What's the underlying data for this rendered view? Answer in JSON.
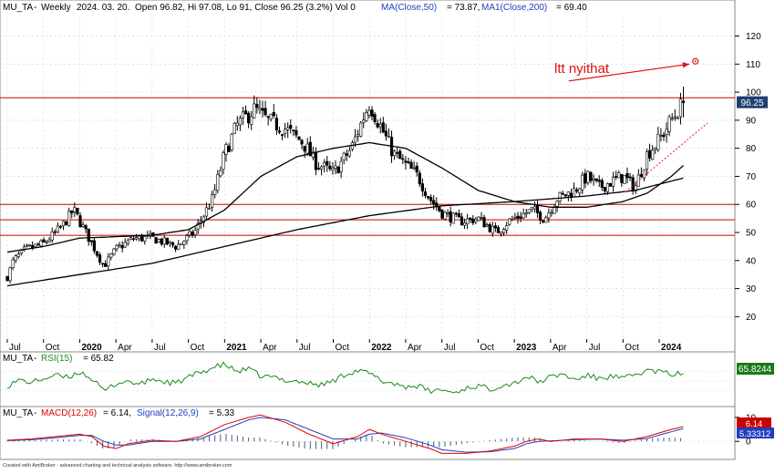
{
  "colors": {
    "candle": "#000000",
    "ma": "#000000",
    "hline": "#cc0000",
    "annotation": "#dd1111",
    "trend": "#ee2222",
    "rsi": "#1a8a1a",
    "macd": "#dd0000",
    "signal": "#1f3fbf",
    "hist": "#4a5a7a",
    "grid": "#c8d0dc",
    "last_price_box": "#1f3f6f",
    "rsi_box": "#1a7a1a",
    "macd_box": "#cc0000",
    "signal_box": "#1f3fbf"
  },
  "header": {
    "symbol": "MU_TA",
    "period": "Weekly",
    "date": "2024. 03. 20.",
    "ohlc_text": "Open 96.82, Hi 97.08, Lo 91, Close 96.25 (3.2%) Vol 0",
    "ma50_label": "MA(Close,50)",
    "ma50_value": "= 73.87,",
    "ma200_label": "MA1(Close,200)",
    "ma200_value": "= 69.40"
  },
  "rsi_panel": {
    "symbol": "MU_TA",
    "label": "RSI(15)",
    "value_text": "= 65.82",
    "last_box": "65.8244"
  },
  "macd_panel": {
    "symbol": "MU_TA",
    "label_macd": "MACD(12,26)",
    "value_macd": "= 6.14,",
    "label_signal": "Signal(12,26,9)",
    "value_signal": "= 5.33",
    "last_macd_box": "6.14",
    "last_signal_box": "5.33312"
  },
  "footer": "Created with AmiBroker - advanced charting and technical analysis software. http://www.amibroker.com",
  "annotation": {
    "text": "ltt nyithat"
  },
  "last_price_box": "96.25",
  "chart_data": [
    {
      "type": "candlestick",
      "title": "MU_TA - Weekly 2024. 03. 20. Open 96.82, Hi 97.08, Lo 91, Close 96.25 (3.2%) Vol 0",
      "x_axis_start": "2019-07",
      "x_ticks": [
        {
          "label": "Jul",
          "month": 0
        },
        {
          "label": "Oct",
          "month": 3
        },
        {
          "label": "2020",
          "month": 6,
          "bold": true
        },
        {
          "label": "Apr",
          "month": 9
        },
        {
          "label": "Jul",
          "month": 12
        },
        {
          "label": "Oct",
          "month": 15
        },
        {
          "label": "2021",
          "month": 18,
          "bold": true
        },
        {
          "label": "Apr",
          "month": 21
        },
        {
          "label": "Jul",
          "month": 24
        },
        {
          "label": "Oct",
          "month": 27
        },
        {
          "label": "2022",
          "month": 30,
          "bold": true
        },
        {
          "label": "Apr",
          "month": 33
        },
        {
          "label": "Jul",
          "month": 36
        },
        {
          "label": "Oct",
          "month": 39
        },
        {
          "label": "2023",
          "month": 42,
          "bold": true
        },
        {
          "label": "Apr",
          "month": 45
        },
        {
          "label": "Jul",
          "month": 48
        },
        {
          "label": "Oct",
          "month": 51
        },
        {
          "label": "2024",
          "month": 54,
          "bold": true
        }
      ],
      "ylim": [
        12,
        127
      ],
      "y_ticks": [
        20,
        30,
        40,
        50,
        60,
        70,
        80,
        90,
        100,
        110,
        120
      ],
      "horizontal_lines": [
        98,
        60,
        54.5,
        49
      ],
      "price_anchors": [
        [
          0,
          34
        ],
        [
          0.5,
          40
        ],
        [
          1.5,
          44
        ],
        [
          3,
          46
        ],
        [
          4.5,
          52
        ],
        [
          5.5,
          58
        ],
        [
          6.5,
          50
        ],
        [
          8,
          38
        ],
        [
          9,
          44
        ],
        [
          10.5,
          48
        ],
        [
          12,
          48
        ],
        [
          14,
          45
        ],
        [
          15.5,
          50
        ],
        [
          17,
          62
        ],
        [
          18,
          78
        ],
        [
          19,
          88
        ],
        [
          20.5,
          94
        ],
        [
          21.5,
          90
        ],
        [
          23,
          87
        ],
        [
          24.5,
          82
        ],
        [
          25.5,
          75
        ],
        [
          27,
          71
        ],
        [
          28.5,
          80
        ],
        [
          29.5,
          91
        ],
        [
          30,
          96
        ],
        [
          31,
          87
        ],
        [
          32,
          78
        ],
        [
          33,
          74
        ],
        [
          34,
          70
        ],
        [
          35,
          62
        ],
        [
          36,
          57
        ],
        [
          37.5,
          54
        ],
        [
          39,
          55
        ],
        [
          40.5,
          50
        ],
        [
          41.5,
          54
        ],
        [
          42.5,
          56
        ],
        [
          43.5,
          58
        ],
        [
          44.5,
          55
        ],
        [
          45.5,
          62
        ],
        [
          47,
          65
        ],
        [
          48,
          70
        ],
        [
          49,
          66
        ],
        [
          50,
          68
        ],
        [
          51,
          70
        ],
        [
          52,
          66
        ],
        [
          53,
          78
        ],
        [
          54,
          83
        ],
        [
          55,
          90
        ],
        [
          56,
          96.25
        ]
      ],
      "ma50_anchors": [
        [
          0,
          43
        ],
        [
          3,
          45
        ],
        [
          6,
          48
        ],
        [
          9,
          48.5
        ],
        [
          12,
          49
        ],
        [
          15,
          51
        ],
        [
          18,
          58
        ],
        [
          21,
          70
        ],
        [
          24,
          77
        ],
        [
          27,
          80
        ],
        [
          30,
          82
        ],
        [
          33,
          80
        ],
        [
          36,
          73
        ],
        [
          39,
          65
        ],
        [
          42,
          61
        ],
        [
          45,
          59
        ],
        [
          48,
          59
        ],
        [
          51,
          61
        ],
        [
          53,
          64
        ],
        [
          55,
          70
        ],
        [
          56,
          73.87
        ]
      ],
      "ma200_anchors": [
        [
          0,
          31
        ],
        [
          6,
          35
        ],
        [
          12,
          39
        ],
        [
          18,
          45
        ],
        [
          24,
          51
        ],
        [
          30,
          56
        ],
        [
          36,
          59.5
        ],
        [
          42,
          61
        ],
        [
          48,
          63
        ],
        [
          52,
          65
        ],
        [
          56,
          69.4
        ]
      ],
      "trendline": {
        "from": [
          51.2,
          64.5
        ],
        "to": [
          58,
          89
        ]
      },
      "arrow": {
        "from": [
          46.5,
          104
        ],
        "to": [
          56.5,
          110
        ]
      },
      "marker": {
        "month": 57,
        "price": 111
      }
    },
    {
      "type": "line",
      "title": "RSI(15)",
      "series": [
        {
          "name": "RSI(15)",
          "anchors": [
            [
              0,
              40
            ],
            [
              1,
              52
            ],
            [
              2,
              47
            ],
            [
              3,
              55
            ],
            [
              4,
              62
            ],
            [
              5,
              57
            ],
            [
              6,
              70
            ],
            [
              7,
              55
            ],
            [
              8,
              28
            ],
            [
              9,
              45
            ],
            [
              10,
              50
            ],
            [
              11,
              42
            ],
            [
              12,
              55
            ],
            [
              13,
              48
            ],
            [
              14,
              45
            ],
            [
              15,
              58
            ],
            [
              16,
              68
            ],
            [
              17,
              78
            ],
            [
              18,
              85
            ],
            [
              19,
              70
            ],
            [
              20,
              75
            ],
            [
              21,
              60
            ],
            [
              22,
              58
            ],
            [
              23,
              52
            ],
            [
              24,
              50
            ],
            [
              25,
              45
            ],
            [
              26,
              42
            ],
            [
              27,
              50
            ],
            [
              28,
              65
            ],
            [
              29,
              72
            ],
            [
              30,
              66
            ],
            [
              31,
              50
            ],
            [
              32,
              45
            ],
            [
              33,
              38
            ],
            [
              34,
              40
            ],
            [
              35,
              28
            ],
            [
              36,
              32
            ],
            [
              37,
              25
            ],
            [
              38,
              35
            ],
            [
              39,
              40
            ],
            [
              40,
              33
            ],
            [
              41,
              42
            ],
            [
              42,
              45
            ],
            [
              43,
              60
            ],
            [
              44,
              48
            ],
            [
              45,
              58
            ],
            [
              46,
              65
            ],
            [
              47,
              52
            ],
            [
              48,
              62
            ],
            [
              49,
              55
            ],
            [
              50,
              60
            ],
            [
              51,
              55
            ],
            [
              52,
              63
            ],
            [
              53,
              72
            ],
            [
              54,
              70
            ],
            [
              55,
              64
            ],
            [
              56,
              65.82
            ]
          ]
        }
      ]
    },
    {
      "type": "line",
      "title": "MACD(12,26)",
      "series": [
        {
          "name": "MACD(12,26)",
          "anchors": [
            [
              0,
              0.5
            ],
            [
              2,
              1
            ],
            [
              4,
              2
            ],
            [
              6,
              3
            ],
            [
              7,
              2
            ],
            [
              8,
              -2
            ],
            [
              9,
              -3
            ],
            [
              10,
              -1
            ],
            [
              12,
              0.5
            ],
            [
              14,
              0
            ],
            [
              16,
              2
            ],
            [
              18,
              7
            ],
            [
              20,
              10
            ],
            [
              21,
              11
            ],
            [
              23,
              8
            ],
            [
              25,
              3
            ],
            [
              27,
              -1
            ],
            [
              29,
              2
            ],
            [
              30,
              5
            ],
            [
              31,
              3
            ],
            [
              33,
              0
            ],
            [
              35,
              -3
            ],
            [
              36,
              -5
            ],
            [
              38,
              -5
            ],
            [
              40,
              -4
            ],
            [
              42,
              -2
            ],
            [
              43,
              0
            ],
            [
              44,
              1
            ],
            [
              45,
              0
            ],
            [
              47,
              1
            ],
            [
              49,
              1
            ],
            [
              51,
              0
            ],
            [
              53,
              2
            ],
            [
              55,
              5
            ],
            [
              56,
              6.14
            ]
          ]
        },
        {
          "name": "Signal(12,26,9)",
          "anchors": [
            [
              0,
              0.3
            ],
            [
              2,
              0.7
            ],
            [
              4,
              1.5
            ],
            [
              6,
              2.5
            ],
            [
              7,
              2.5
            ],
            [
              8,
              0
            ],
            [
              9,
              -1.5
            ],
            [
              10,
              -1.5
            ],
            [
              12,
              0
            ],
            [
              14,
              0
            ],
            [
              16,
              1
            ],
            [
              18,
              5
            ],
            [
              20,
              9
            ],
            [
              21,
              10
            ],
            [
              23,
              9
            ],
            [
              25,
              5
            ],
            [
              27,
              1
            ],
            [
              29,
              1
            ],
            [
              30,
              3
            ],
            [
              31,
              3.5
            ],
            [
              33,
              1.5
            ],
            [
              35,
              -1.5
            ],
            [
              36,
              -3.5
            ],
            [
              38,
              -4.5
            ],
            [
              40,
              -4.3
            ],
            [
              42,
              -3
            ],
            [
              43,
              -1
            ],
            [
              44,
              0
            ],
            [
              45,
              0.2
            ],
            [
              47,
              0.7
            ],
            [
              49,
              1
            ],
            [
              51,
              0.5
            ],
            [
              53,
              1.2
            ],
            [
              55,
              4
            ],
            [
              56,
              5.33
            ]
          ]
        }
      ]
    }
  ]
}
